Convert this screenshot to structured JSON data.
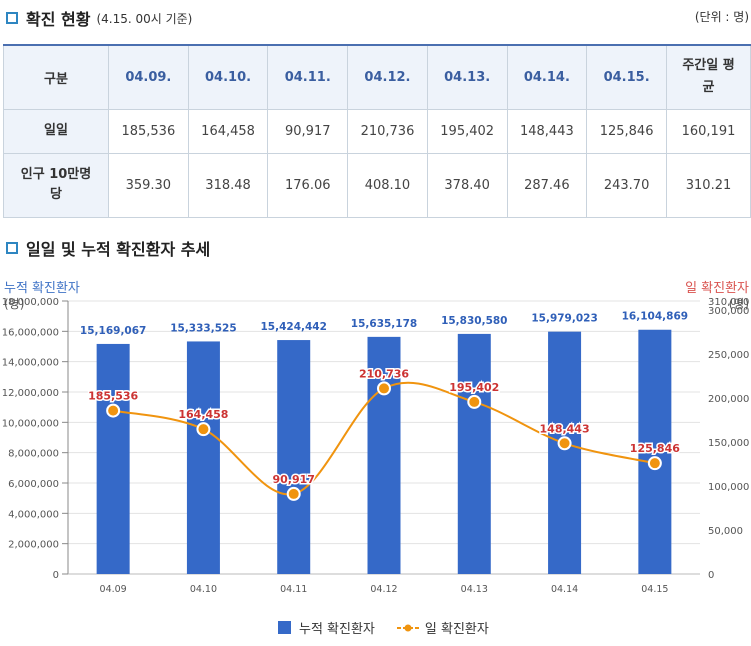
{
  "section1": {
    "title": "확진 현황",
    "subtitle": "(4.15. 00시 기준)",
    "unit": "(단위 : 명)"
  },
  "table": {
    "header": [
      "구분",
      "04.09.",
      "04.10.",
      "04.11.",
      "04.12.",
      "04.13.",
      "04.14.",
      "04.15.",
      "주간일 평균"
    ],
    "rows": [
      {
        "label": "일일",
        "values": [
          "185,536",
          "164,458",
          "90,917",
          "210,736",
          "195,402",
          "148,443",
          "125,846",
          "160,191"
        ]
      },
      {
        "label": "인구 10만명 당",
        "values": [
          "359.30",
          "318.48",
          "176.06",
          "408.10",
          "378.40",
          "287.46",
          "243.70",
          "310.21"
        ]
      }
    ]
  },
  "section2": {
    "title": "일일 및 누적 확진환자 추세"
  },
  "colors": {
    "bar": "#3569c8",
    "line": "#f0940f",
    "marker": "#f0940f",
    "bar_label": "#2f5fb8",
    "line_label": "#cc3333",
    "left_axis_title": "#3f73c6",
    "right_axis_title": "#d9534f"
  },
  "chart_data": {
    "type": "bar+line",
    "categories": [
      "04.09",
      "04.10",
      "04.11",
      "04.12",
      "04.13",
      "04.14",
      "04.15"
    ],
    "series": [
      {
        "name": "누적 확진환자",
        "type": "bar",
        "axis": "left",
        "values": [
          15169067,
          15333525,
          15424442,
          15635178,
          15830580,
          15979023,
          16104869
        ],
        "labels": [
          "15,169,067",
          "15,333,525",
          "15,424,442",
          "15,635,178",
          "15,830,580",
          "15,979,023",
          "16,104,869"
        ]
      },
      {
        "name": "일 확진환자",
        "type": "line",
        "axis": "right",
        "values": [
          185536,
          164458,
          90917,
          210736,
          195402,
          148443,
          125846
        ],
        "labels": [
          "185,536",
          "164,458",
          "90,917",
          "210,736",
          "195,402",
          "148,443",
          "125,846"
        ]
      }
    ],
    "left_axis": {
      "title": "누적 확진환자",
      "unit": "(명)",
      "min": 0,
      "max": 18000000,
      "ticks": [
        "0",
        "2,000,000",
        "4,000,000",
        "6,000,000",
        "8,000,000",
        "10,000,000",
        "12,000,000",
        "14,000,000",
        "16,000,000",
        "18,000,000"
      ]
    },
    "right_axis": {
      "title": "일 확진환자",
      "unit": "(명)",
      "min": 0,
      "max": 310000,
      "ticks": [
        "0",
        "50,000",
        "100,000",
        "150,000",
        "200,000",
        "250,000",
        "300,000",
        "310,000"
      ]
    },
    "grid": true,
    "legend": [
      "누적 확진환자",
      "일 확진환자"
    ],
    "legend_position": "bottom-center"
  }
}
